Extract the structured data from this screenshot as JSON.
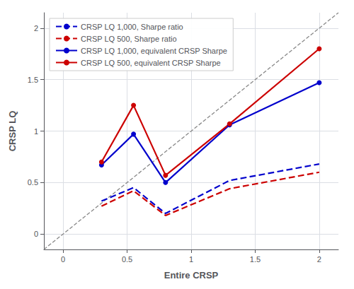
{
  "chart_data": {
    "type": "line",
    "xlabel": "Entire CRSP",
    "ylabel": "CRSP LQ",
    "x": [
      0.3,
      0.55,
      0.8,
      1.3,
      2.0
    ],
    "series": [
      {
        "color": "#888888",
        "line_style": "dashed",
        "marker": "none",
        "x": [
          -0.15,
          2.15
        ],
        "values": [
          -0.15,
          2.15
        ]
      },
      {
        "name": "CRSP LQ 1,000, Sharpe ratio",
        "color": "#0000cc",
        "line_style": "dashed",
        "marker": "none",
        "values": [
          0.32,
          0.45,
          0.2,
          0.52,
          0.68
        ]
      },
      {
        "name": "CRSP LQ 500, Sharpe ratio",
        "color": "#cc0000",
        "line_style": "dashed",
        "marker": "none",
        "values": [
          0.27,
          0.42,
          0.18,
          0.44,
          0.6
        ]
      },
      {
        "name": "CRSP LQ 1,000, equivalent CRSP Sharpe",
        "color": "#0000cc",
        "line_style": "solid",
        "marker": "circle",
        "values": [
          0.67,
          0.97,
          0.5,
          1.06,
          1.47
        ]
      },
      {
        "name": "CRSP LQ 500, equivalent CRSP Sharpe",
        "color": "#cc0000",
        "line_style": "solid",
        "marker": "circle",
        "values": [
          0.7,
          1.25,
          0.57,
          1.07,
          1.8
        ]
      }
    ],
    "xlim": [
      -0.15,
      2.15
    ],
    "ylim": [
      -0.15,
      2.15
    ],
    "xticks": [
      0,
      0.5,
      1.0,
      1.5,
      2.0
    ],
    "yticks": [
      0,
      0.5,
      1.0,
      1.5,
      2.0
    ],
    "grid": true,
    "legend": "upper left"
  }
}
